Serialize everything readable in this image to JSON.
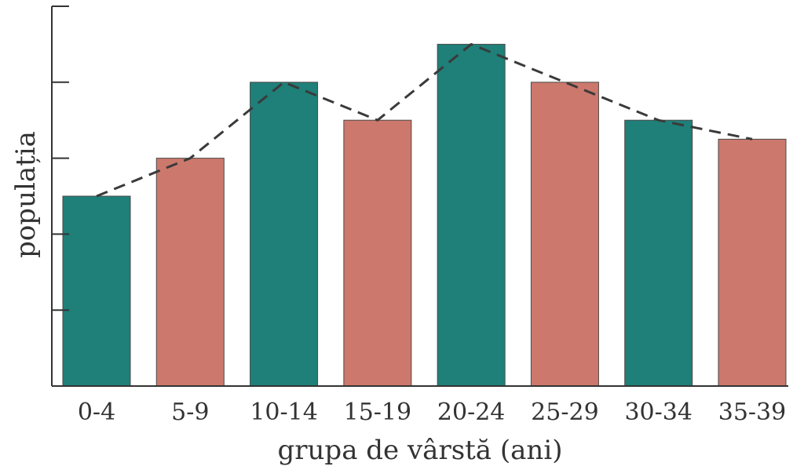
{
  "chart_data": {
    "type": "bar",
    "xlabel": "grupa de vârstă (ani)",
    "ylabel": "populația",
    "categories": [
      "0-4",
      "5-9",
      "10-14",
      "15-19",
      "20-24",
      "25-29",
      "30-34",
      "35-39"
    ],
    "values": [
      5,
      6,
      8,
      7,
      9,
      8,
      7,
      6.5
    ],
    "ylim": [
      0,
      10
    ],
    "yticks": [
      0,
      2,
      4,
      6,
      8,
      10
    ],
    "show_ytick_labels": false,
    "trend_line": {
      "style": "dashed",
      "values": [
        5,
        6,
        8,
        7,
        9,
        8,
        7,
        6.5
      ]
    },
    "grid": false,
    "legend": "none",
    "colors": {
      "bar_a": "#1f7f79",
      "bar_b": "#cc786c",
      "trend": "#3a3a3a",
      "axis": "#333333"
    }
  }
}
